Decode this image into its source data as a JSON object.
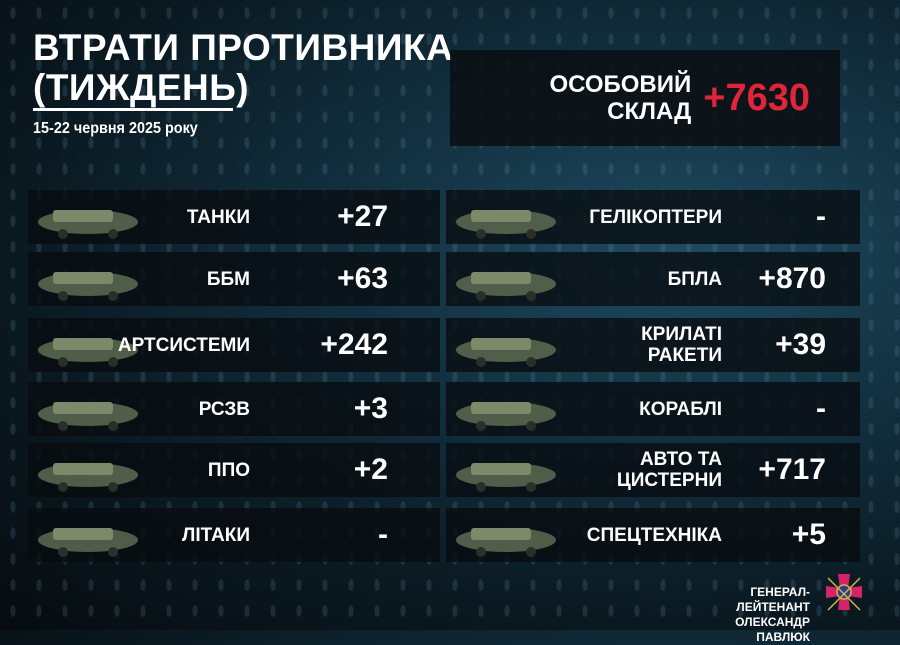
{
  "header": {
    "title_line1": "ВТРАТИ ПРОТИВНИКА",
    "title_line2": "(ТИЖДЕНЬ)",
    "date": "15-22 червня 2025 року"
  },
  "personnel": {
    "label_line1": "ОСОБОВИЙ",
    "label_line2": "СКЛАД",
    "value": "+7630",
    "value_color": "#e0253a"
  },
  "left": [
    {
      "icon": "tank-icon",
      "label": "ТАНКИ",
      "value": "+27"
    },
    {
      "icon": "armored-vehicle-icon",
      "label": "ББМ",
      "value": "+63"
    },
    {
      "icon": "artillery-icon",
      "label": "АРТСИСТЕМИ",
      "value": "+242"
    },
    {
      "icon": "mlrs-icon",
      "label": "РСЗВ",
      "value": "+3"
    },
    {
      "icon": "air-defense-icon",
      "label": "ППО",
      "value": "+2"
    },
    {
      "icon": "aircraft-icon",
      "label": "ЛІТАКИ",
      "value": "-"
    }
  ],
  "right": [
    {
      "icon": "helicopter-icon",
      "label": "ГЕЛІКОПТЕРИ",
      "value": "-"
    },
    {
      "icon": "drone-icon",
      "label": "БПЛА",
      "value": "+870"
    },
    {
      "icon": "cruise-missile-icon",
      "label_line1": "КРИЛАТІ",
      "label_line2": "РАКЕТИ",
      "value": "+39"
    },
    {
      "icon": "warship-icon",
      "label": "КОРАБЛІ",
      "value": "-"
    },
    {
      "icon": "truck-icon",
      "label_line1": "АВТО ТА",
      "label_line2": "ЦИСТЕРНИ",
      "value": "+717"
    },
    {
      "icon": "special-equipment-icon",
      "label": "СПЕЦТЕХНІКА",
      "value": "+5"
    }
  ],
  "signature": {
    "line1": "ГЕНЕРАЛ-ЛЕЙТЕНАНТ",
    "line2": "ОЛЕКСАНДР ПАВЛЮК"
  }
}
